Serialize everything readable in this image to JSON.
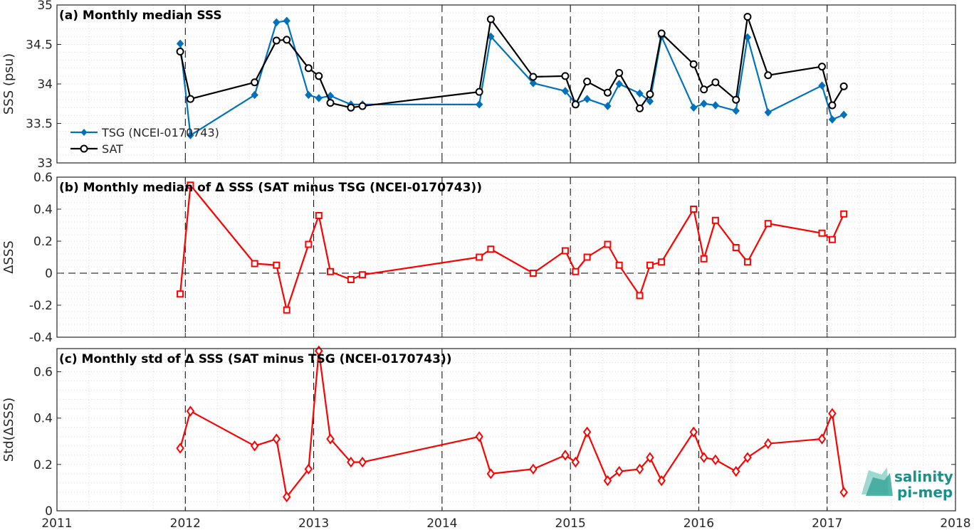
{
  "chart_data": [
    {
      "type": "line",
      "title": "(a) Monthly median SSS",
      "ylabel": "SSS (psu)",
      "xlim": [
        2011,
        2018
      ],
      "ylim": [
        33,
        35
      ],
      "yticks": [
        33,
        33.5,
        34,
        34.5,
        35
      ],
      "grid": "minor-dotted",
      "legend_position": "bottom-left",
      "series": [
        {
          "name": "TSG (NCEI-0170743)",
          "color": "#0072bd",
          "marker": "diamond-filled",
          "x": [
            2011.96,
            2012.04,
            2012.54,
            2012.71,
            2012.79,
            2012.96,
            2013.04,
            2013.13,
            2013.29,
            2013.38,
            2014.29,
            2014.38,
            2014.71,
            2014.96,
            2015.04,
            2015.13,
            2015.29,
            2015.38,
            2015.54,
            2015.62,
            2015.71,
            2015.96,
            2016.04,
            2016.13,
            2016.29,
            2016.38,
            2016.54,
            2016.96,
            2017.04,
            2017.13
          ],
          "y": [
            34.51,
            33.35,
            33.86,
            34.78,
            34.8,
            33.86,
            33.82,
            33.85,
            33.74,
            33.74,
            33.74,
            34.6,
            34.01,
            33.91,
            33.75,
            33.81,
            33.72,
            34.0,
            33.88,
            33.78,
            34.6,
            33.7,
            33.75,
            33.73,
            33.66,
            34.59,
            33.64,
            33.98,
            33.55,
            33.61
          ]
        },
        {
          "name": "SAT",
          "color": "#000000",
          "marker": "circle-open",
          "x": [
            2011.96,
            2012.04,
            2012.54,
            2012.71,
            2012.79,
            2012.96,
            2013.04,
            2013.13,
            2013.29,
            2013.38,
            2014.29,
            2014.38,
            2014.71,
            2014.96,
            2015.04,
            2015.13,
            2015.29,
            2015.38,
            2015.54,
            2015.62,
            2015.71,
            2015.96,
            2016.04,
            2016.13,
            2016.29,
            2016.38,
            2016.54,
            2016.96,
            2017.04,
            2017.13
          ],
          "y": [
            34.41,
            33.81,
            34.02,
            34.55,
            34.56,
            34.2,
            34.1,
            33.76,
            33.7,
            33.72,
            33.9,
            34.82,
            34.09,
            34.1,
            33.74,
            34.03,
            33.89,
            34.14,
            33.69,
            33.87,
            34.64,
            34.25,
            33.93,
            34.02,
            33.8,
            34.85,
            34.11,
            34.22,
            33.73,
            33.97
          ]
        }
      ]
    },
    {
      "type": "line",
      "title": "(b) Monthly median of Δ SSS (SAT minus TSG (NCEI-0170743))",
      "ylabel": "ΔSSS",
      "xlim": [
        2011,
        2018
      ],
      "ylim": [
        -0.4,
        0.6
      ],
      "yticks": [
        -0.4,
        -0.2,
        0,
        0.2,
        0.4,
        0.6
      ],
      "zero_line": true,
      "series": [
        {
          "color": "#ff0000",
          "marker": "square-open",
          "x": [
            2011.96,
            2012.04,
            2012.54,
            2012.71,
            2012.79,
            2012.96,
            2013.04,
            2013.13,
            2013.29,
            2013.38,
            2014.29,
            2014.38,
            2014.71,
            2014.96,
            2015.04,
            2015.13,
            2015.29,
            2015.38,
            2015.54,
            2015.62,
            2015.71,
            2015.96,
            2016.04,
            2016.13,
            2016.29,
            2016.38,
            2016.54,
            2016.96,
            2017.04,
            2017.13
          ],
          "y": [
            -0.13,
            0.55,
            0.06,
            0.05,
            -0.23,
            0.18,
            0.36,
            0.01,
            -0.04,
            -0.01,
            0.1,
            0.15,
            0.0,
            0.14,
            0.01,
            0.1,
            0.18,
            0.05,
            -0.14,
            0.05,
            0.07,
            0.4,
            0.09,
            0.33,
            0.16,
            0.07,
            0.31,
            0.25,
            0.21,
            0.37
          ]
        }
      ]
    },
    {
      "type": "line",
      "title": "(c) Monthly std of Δ SSS (SAT minus TSG (NCEI-0170743))",
      "ylabel": "Std(ΔSSS)",
      "xlabel": "",
      "xlim": [
        2011,
        2018
      ],
      "ylim": [
        0,
        0.7
      ],
      "yticks": [
        0,
        0.2,
        0.4,
        0.6
      ],
      "xticks": [
        2011,
        2012,
        2013,
        2014,
        2015,
        2016,
        2017,
        2018
      ],
      "series": [
        {
          "color": "#ff0000",
          "marker": "diamond-open",
          "x": [
            2011.96,
            2012.04,
            2012.54,
            2012.71,
            2012.79,
            2012.96,
            2013.04,
            2013.13,
            2013.29,
            2013.38,
            2014.29,
            2014.38,
            2014.71,
            2014.96,
            2015.04,
            2015.13,
            2015.29,
            2015.38,
            2015.54,
            2015.62,
            2015.71,
            2015.96,
            2016.04,
            2016.13,
            2016.29,
            2016.38,
            2016.54,
            2016.96,
            2017.04,
            2017.13
          ],
          "y": [
            0.27,
            0.43,
            0.28,
            0.31,
            0.06,
            0.18,
            0.69,
            0.31,
            0.21,
            0.21,
            0.32,
            0.16,
            0.18,
            0.24,
            0.21,
            0.34,
            0.13,
            0.17,
            0.18,
            0.23,
            0.13,
            0.34,
            0.23,
            0.22,
            0.17,
            0.23,
            0.29,
            0.31,
            0.42,
            0.08
          ]
        }
      ]
    }
  ],
  "logo": {
    "line1": "salinity",
    "line2": "pi-mep",
    "color": "#1e8f88"
  }
}
